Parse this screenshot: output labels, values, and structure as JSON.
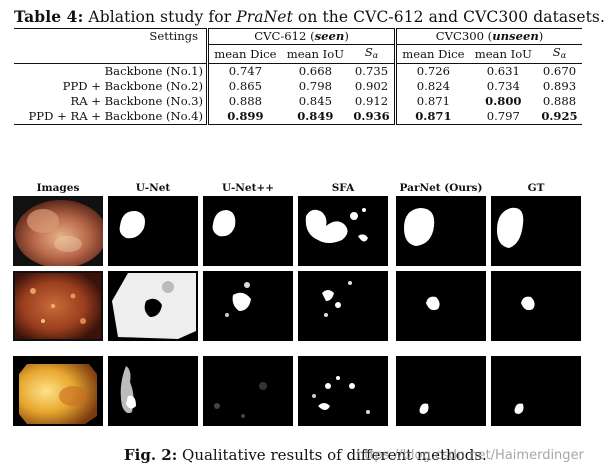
{
  "table_caption": {
    "label": "Table 4:",
    "text_before": " Ablation study for ",
    "method": "PraNet",
    "text_after": " on the CVC-612 and CVC300 datasets."
  },
  "table": {
    "settings_header": "Settings",
    "group1": {
      "name": "CVC-612 (",
      "tag": "seen",
      "close": ")"
    },
    "group2": {
      "name": "CVC300 (",
      "tag": "unseen",
      "close": ")"
    },
    "metrics": [
      "mean Dice",
      "mean IoU",
      "S",
      "α"
    ],
    "rows": [
      {
        "setting": "Backbone (No.1)",
        "v": [
          "0.747",
          "0.668",
          "0.735",
          "0.726",
          "0.631",
          "0.670"
        ]
      },
      {
        "setting": "PPD + Backbone (No.2)",
        "v": [
          "0.865",
          "0.798",
          "0.902",
          "0.824",
          "0.734",
          "0.893"
        ]
      },
      {
        "setting": "RA + Backbone (No.3)",
        "v": [
          "0.888",
          "0.845",
          "0.912",
          "0.871",
          "0.800",
          "0.888"
        ]
      },
      {
        "setting": "PPD + RA + Backbone (No.4)",
        "v": [
          "0.899",
          "0.849",
          "0.936",
          "0.871",
          "0.797",
          "0.925"
        ]
      }
    ]
  },
  "figure": {
    "columns": [
      "Images",
      "U-Net",
      "U-Net++",
      "SFA",
      "ParNet (Ours)",
      "GT"
    ],
    "caption_label": "Fig. 2:",
    "caption_text": " Qualitative results of different methods."
  },
  "watermark": "https://blog.csdn.net/Haimerdinger"
}
